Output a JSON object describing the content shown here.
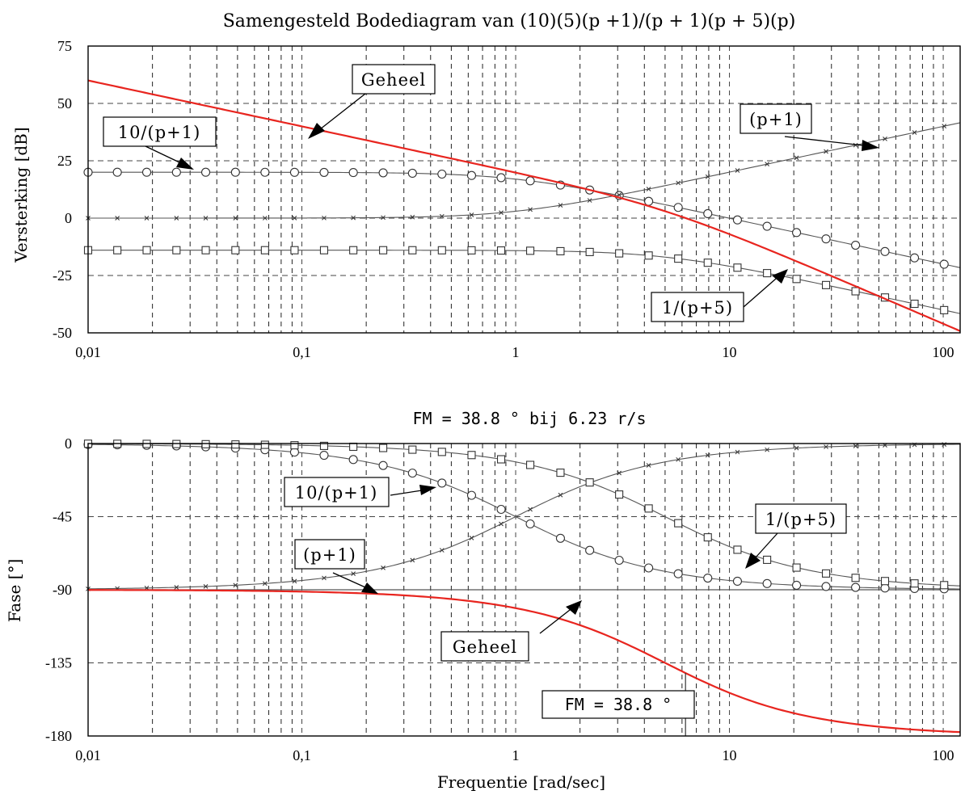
{
  "chart_data": {
    "title": "Samengesteld Bodediagram van (10)(5)(p +1)/(p + 1)(p + 5)(p)",
    "xlabel": "Frequentie [rad/sec]",
    "xscale": "log",
    "xlim": [
      0.01,
      120
    ],
    "xticks": [
      {
        "value": 0.01,
        "label": "0,01"
      },
      {
        "value": 0.1,
        "label": "0,1"
      },
      {
        "value": 1,
        "label": "1"
      },
      {
        "value": 10,
        "label": "10"
      },
      {
        "value": 100,
        "label": "100"
      }
    ],
    "marker_x": [
      0.01,
      0.0137,
      0.0188,
      0.0259,
      0.0355,
      0.0489,
      0.0672,
      0.0924,
      0.127,
      0.174,
      0.24,
      0.329,
      0.452,
      0.622,
      0.855,
      1.17,
      1.62,
      2.22,
      3.05,
      4.19,
      5.76,
      7.92,
      10.9,
      15.0,
      20.6,
      28.3,
      38.9,
      53.4,
      73.4,
      101
    ],
    "charts": [
      {
        "type": "line",
        "ylabel": "Versterking [dB]",
        "ylim": [
          -50,
          75
        ],
        "yticks": [
          75,
          50,
          25,
          0,
          -25,
          -50
        ],
        "series": [
          {
            "name": "Geheel",
            "color": "#e8251f",
            "marker": "none",
            "func": "gain_total"
          },
          {
            "name": "10/(p+1)",
            "color": "#555555",
            "marker": "circle",
            "func": "gain_lag1"
          },
          {
            "name": "(p+1)",
            "color": "#555555",
            "marker": "x",
            "func": "gain_lead1"
          },
          {
            "name": "1/(p+5)",
            "color": "#555555",
            "marker": "square",
            "func": "gain_lag5"
          }
        ]
      },
      {
        "type": "line",
        "subtitle": "FM = 38.8 °  bij 6.23 r/s",
        "ylabel": "Fase [°]",
        "ylim": [
          -180,
          0
        ],
        "yticks": [
          0,
          -45,
          -90,
          -135,
          -180
        ],
        "series": [
          {
            "name": "Geheel",
            "color": "#e8251f",
            "marker": "none",
            "func": "phase_total"
          },
          {
            "name": "10/(p+1)",
            "color": "#555555",
            "marker": "circle",
            "func": "phase_lag1"
          },
          {
            "name": "(p+1)",
            "color": "#555555",
            "marker": "x",
            "func": "phase_lead1"
          },
          {
            "name": "1/(p+5)",
            "color": "#555555",
            "marker": "square",
            "func": "phase_lag5"
          }
        ],
        "reference_line": -90,
        "phase_margin_marker": {
          "frequency": 6.23,
          "label": "FM = 38.8 °"
        }
      }
    ]
  }
}
